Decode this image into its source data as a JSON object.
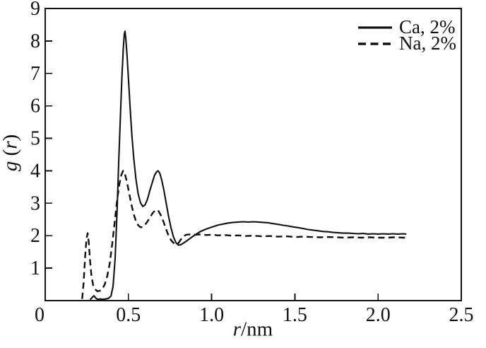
{
  "figure": {
    "background": "#ffffff",
    "line_color": "#111111"
  },
  "axes": {
    "xlabel_var": "r",
    "xlabel_unit": "/nm",
    "ylabel_func": "g",
    "ylabel_open": " (",
    "ylabel_var": "r",
    "ylabel_close": ")"
  },
  "legend": {
    "items": [
      {
        "label": "Ca, 2%",
        "style": "solid"
      },
      {
        "label": "Na, 2%",
        "style": "dashed"
      }
    ]
  },
  "chart_data": {
    "type": "line",
    "title": "",
    "xlabel": "r/nm",
    "ylabel": "g(r)",
    "xlim": [
      0,
      2.5
    ],
    "ylim": [
      0,
      9
    ],
    "x_ticks": [
      0,
      0.5,
      1.0,
      1.5,
      2.0,
      2.5
    ],
    "x_tick_labels": [
      "0",
      "0.5",
      "1.0",
      "1.5",
      "2.0",
      "2.5"
    ],
    "y_ticks": [
      1,
      2,
      3,
      4,
      5,
      6,
      7,
      8,
      9
    ],
    "y_tick_labels": [
      "1",
      "2",
      "3",
      "4",
      "5",
      "6",
      "7",
      "8",
      "9"
    ],
    "grid": false,
    "legend_position": "top-right",
    "series": [
      {
        "name": "Ca, 2%",
        "style": "solid",
        "points": [
          [
            0.27,
            0.03
          ],
          [
            0.283,
            0.1
          ],
          [
            0.293,
            0.15
          ],
          [
            0.303,
            0.08
          ],
          [
            0.315,
            0.04
          ],
          [
            0.33,
            0.05
          ],
          [
            0.347,
            0.04
          ],
          [
            0.363,
            0.05
          ],
          [
            0.38,
            0.07
          ],
          [
            0.395,
            0.14
          ],
          [
            0.408,
            0.45
          ],
          [
            0.42,
            1.3
          ],
          [
            0.432,
            2.8
          ],
          [
            0.442,
            4.3
          ],
          [
            0.452,
            5.7
          ],
          [
            0.461,
            6.9
          ],
          [
            0.469,
            7.75
          ],
          [
            0.475,
            8.2
          ],
          [
            0.479,
            8.3
          ],
          [
            0.484,
            8.1
          ],
          [
            0.491,
            7.6
          ],
          [
            0.5,
            6.85
          ],
          [
            0.51,
            5.95
          ],
          [
            0.52,
            5.15
          ],
          [
            0.532,
            4.4
          ],
          [
            0.545,
            3.75
          ],
          [
            0.558,
            3.3
          ],
          [
            0.572,
            3.02
          ],
          [
            0.586,
            2.9
          ],
          [
            0.6,
            2.95
          ],
          [
            0.614,
            3.12
          ],
          [
            0.628,
            3.38
          ],
          [
            0.642,
            3.62
          ],
          [
            0.656,
            3.85
          ],
          [
            0.668,
            3.96
          ],
          [
            0.678,
            4.0
          ],
          [
            0.688,
            3.93
          ],
          [
            0.7,
            3.72
          ],
          [
            0.713,
            3.4
          ],
          [
            0.727,
            3.0
          ],
          [
            0.741,
            2.6
          ],
          [
            0.756,
            2.24
          ],
          [
            0.771,
            1.96
          ],
          [
            0.786,
            1.78
          ],
          [
            0.8,
            1.71
          ],
          [
            0.814,
            1.72
          ],
          [
            0.83,
            1.77
          ],
          [
            0.848,
            1.83
          ],
          [
            0.866,
            1.9
          ],
          [
            0.885,
            1.97
          ],
          [
            0.905,
            2.04
          ],
          [
            0.93,
            2.12
          ],
          [
            0.955,
            2.18
          ],
          [
            0.98,
            2.23
          ],
          [
            1.01,
            2.28
          ],
          [
            1.04,
            2.33
          ],
          [
            1.07,
            2.36
          ],
          [
            1.1,
            2.39
          ],
          [
            1.13,
            2.41
          ],
          [
            1.16,
            2.42
          ],
          [
            1.19,
            2.43
          ],
          [
            1.22,
            2.42
          ],
          [
            1.25,
            2.43
          ],
          [
            1.28,
            2.42
          ],
          [
            1.31,
            2.41
          ],
          [
            1.34,
            2.4
          ],
          [
            1.37,
            2.37
          ],
          [
            1.4,
            2.35
          ],
          [
            1.43,
            2.32
          ],
          [
            1.46,
            2.3
          ],
          [
            1.49,
            2.27
          ],
          [
            1.52,
            2.25
          ],
          [
            1.55,
            2.22
          ],
          [
            1.58,
            2.19
          ],
          [
            1.61,
            2.17
          ],
          [
            1.64,
            2.15
          ],
          [
            1.67,
            2.13
          ],
          [
            1.7,
            2.12
          ],
          [
            1.73,
            2.1
          ],
          [
            1.76,
            2.09
          ],
          [
            1.79,
            2.08
          ],
          [
            1.82,
            2.08
          ],
          [
            1.85,
            2.07
          ],
          [
            1.88,
            2.06
          ],
          [
            1.91,
            2.07
          ],
          [
            1.94,
            2.05
          ],
          [
            1.97,
            2.06
          ],
          [
            2.0,
            2.05
          ],
          [
            2.03,
            2.06
          ],
          [
            2.06,
            2.05
          ],
          [
            2.09,
            2.06
          ],
          [
            2.12,
            2.05
          ],
          [
            2.15,
            2.06
          ],
          [
            2.17,
            2.05
          ]
        ]
      },
      {
        "name": "Na, 2%",
        "style": "dashed",
        "points": [
          [
            0.222,
            0.05
          ],
          [
            0.231,
            0.55
          ],
          [
            0.24,
            1.35
          ],
          [
            0.248,
            1.9
          ],
          [
            0.255,
            2.08
          ],
          [
            0.262,
            1.78
          ],
          [
            0.27,
            1.2
          ],
          [
            0.278,
            0.75
          ],
          [
            0.288,
            0.48
          ],
          [
            0.3,
            0.35
          ],
          [
            0.313,
            0.29
          ],
          [
            0.328,
            0.3
          ],
          [
            0.343,
            0.36
          ],
          [
            0.358,
            0.5
          ],
          [
            0.373,
            0.76
          ],
          [
            0.388,
            1.15
          ],
          [
            0.403,
            1.75
          ],
          [
            0.418,
            2.45
          ],
          [
            0.432,
            3.1
          ],
          [
            0.446,
            3.6
          ],
          [
            0.458,
            3.88
          ],
          [
            0.468,
            4.0
          ],
          [
            0.478,
            3.92
          ],
          [
            0.49,
            3.68
          ],
          [
            0.503,
            3.35
          ],
          [
            0.517,
            2.98
          ],
          [
            0.531,
            2.68
          ],
          [
            0.545,
            2.45
          ],
          [
            0.559,
            2.32
          ],
          [
            0.573,
            2.26
          ],
          [
            0.587,
            2.27
          ],
          [
            0.601,
            2.34
          ],
          [
            0.616,
            2.45
          ],
          [
            0.631,
            2.58
          ],
          [
            0.646,
            2.7
          ],
          [
            0.659,
            2.77
          ],
          [
            0.67,
            2.8
          ],
          [
            0.682,
            2.75
          ],
          [
            0.695,
            2.63
          ],
          [
            0.71,
            2.44
          ],
          [
            0.725,
            2.22
          ],
          [
            0.74,
            2.02
          ],
          [
            0.755,
            1.87
          ],
          [
            0.77,
            1.78
          ],
          [
            0.785,
            1.73
          ],
          [
            0.8,
            1.77
          ],
          [
            0.815,
            1.88
          ],
          [
            0.83,
            1.98
          ],
          [
            0.848,
            2.03
          ],
          [
            0.87,
            2.04
          ],
          [
            0.9,
            2.03
          ],
          [
            0.935,
            2.04
          ],
          [
            0.97,
            2.02
          ],
          [
            1.005,
            2.03
          ],
          [
            1.04,
            2.01
          ],
          [
            1.08,
            2.02
          ],
          [
            1.12,
            2.0
          ],
          [
            1.16,
            2.01
          ],
          [
            1.2,
            1.99
          ],
          [
            1.25,
            2.0
          ],
          [
            1.3,
            1.98
          ],
          [
            1.35,
            1.99
          ],
          [
            1.4,
            1.97
          ],
          [
            1.45,
            1.98
          ],
          [
            1.5,
            1.96
          ],
          [
            1.55,
            1.97
          ],
          [
            1.6,
            1.96
          ],
          [
            1.65,
            1.95
          ],
          [
            1.7,
            1.96
          ],
          [
            1.75,
            1.95
          ],
          [
            1.8,
            1.94
          ],
          [
            1.85,
            1.95
          ],
          [
            1.9,
            1.94
          ],
          [
            1.95,
            1.95
          ],
          [
            2.0,
            1.94
          ],
          [
            2.05,
            1.94
          ],
          [
            2.1,
            1.95
          ],
          [
            2.15,
            1.94
          ],
          [
            2.17,
            1.94
          ]
        ]
      }
    ]
  }
}
